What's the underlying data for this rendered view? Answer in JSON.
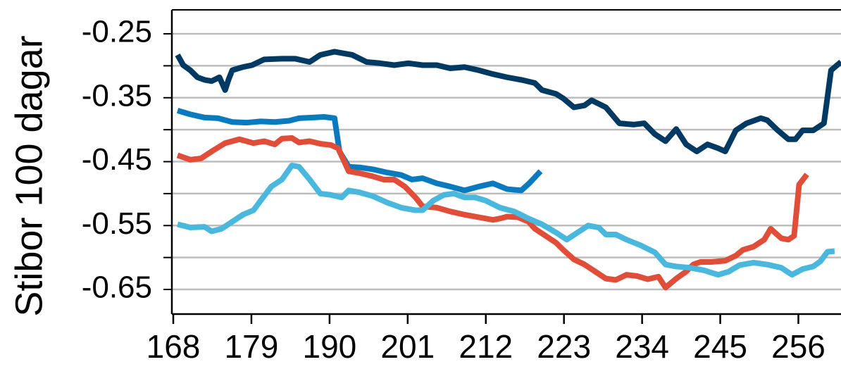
{
  "chart_data": {
    "type": "line",
    "y_label": "Stibor 100 dagar",
    "xlim": [
      168,
      262
    ],
    "xticks": [
      168,
      179,
      190,
      201,
      212,
      223,
      234,
      245,
      256
    ],
    "ylim": [
      -0.6885,
      -0.2125
    ],
    "yticks": [
      -0.25,
      -0.35,
      -0.45,
      -0.55,
      -0.65
    ],
    "minor_yticks": [
      -0.3,
      -0.4,
      -0.5,
      -0.6
    ],
    "grid": true,
    "series": [
      {
        "color": "#003a63",
        "x": [
          168.6,
          169.4,
          170.4,
          171.4,
          172.4,
          173.4,
          174.5,
          175.3,
          175.8,
          176.3,
          177.8,
          179.1,
          180.8,
          183.3,
          185.2,
          187.2,
          188.7,
          190.7,
          192.2,
          193.2,
          195.2,
          197.1,
          199.1,
          201.1,
          203.1,
          205.1,
          207.0,
          209.0,
          211.0,
          213.0,
          215.0,
          217.0,
          218.9,
          219.9,
          221.9,
          222.9,
          224.4,
          225.9,
          226.9,
          228.9,
          230.8,
          232.8,
          234.3,
          235.8,
          237.3,
          238.8,
          240.2,
          241.7,
          243.2,
          244.7,
          245.7,
          247.2,
          248.7,
          250.7,
          251.6,
          253.1,
          254.6,
          255.6,
          256.6,
          258.1,
          259.6,
          260.6,
          262.0
        ],
        "values": [
          -0.283,
          -0.299,
          -0.307,
          -0.318,
          -0.322,
          -0.324,
          -0.318,
          -0.338,
          -0.321,
          -0.307,
          -0.302,
          -0.299,
          -0.29,
          -0.289,
          -0.289,
          -0.294,
          -0.283,
          -0.278,
          -0.281,
          -0.283,
          -0.294,
          -0.296,
          -0.299,
          -0.296,
          -0.299,
          -0.299,
          -0.304,
          -0.302,
          -0.307,
          -0.313,
          -0.318,
          -0.322,
          -0.327,
          -0.338,
          -0.344,
          -0.351,
          -0.365,
          -0.362,
          -0.354,
          -0.365,
          -0.39,
          -0.392,
          -0.39,
          -0.407,
          -0.418,
          -0.399,
          -0.423,
          -0.434,
          -0.423,
          -0.429,
          -0.434,
          -0.401,
          -0.39,
          -0.382,
          -0.385,
          -0.401,
          -0.415,
          -0.415,
          -0.401,
          -0.401,
          -0.39,
          -0.307,
          -0.294
        ]
      },
      {
        "color": "#0a7abf",
        "x": [
          168.6,
          170.4,
          172.4,
          174.3,
          176.3,
          178.3,
          180.3,
          182.3,
          184.3,
          185.7,
          187.7,
          189.2,
          190.7,
          191.4,
          192.7,
          194.2,
          196.1,
          198.1,
          200.1,
          201.6,
          203.1,
          205.1,
          207.0,
          209.0,
          211.0,
          213.0,
          215.0,
          217.0,
          218.1,
          219.7
        ],
        "values": [
          -0.37,
          -0.376,
          -0.381,
          -0.382,
          -0.388,
          -0.389,
          -0.387,
          -0.388,
          -0.386,
          -0.382,
          -0.381,
          -0.38,
          -0.382,
          -0.434,
          -0.458,
          -0.459,
          -0.462,
          -0.467,
          -0.471,
          -0.478,
          -0.476,
          -0.484,
          -0.489,
          -0.495,
          -0.489,
          -0.484,
          -0.493,
          -0.495,
          -0.484,
          -0.465
        ]
      },
      {
        "color": "#e04e39",
        "x": [
          168.6,
          170.4,
          171.9,
          173.4,
          175.3,
          177.3,
          179.3,
          180.8,
          182.3,
          183.3,
          184.7,
          185.7,
          187.2,
          188.7,
          190.2,
          191.2,
          192.7,
          194.2,
          196.1,
          197.6,
          199.1,
          200.6,
          202.1,
          203.1,
          205.1,
          207.0,
          209.0,
          211.0,
          213.0,
          214.0,
          215.0,
          216.5,
          218.0,
          218.9,
          220.4,
          221.9,
          222.9,
          224.4,
          225.9,
          227.4,
          228.9,
          230.3,
          231.8,
          233.3,
          234.8,
          236.3,
          237.3,
          238.8,
          240.2,
          241.2,
          242.2,
          243.7,
          245.7,
          247.2,
          248.2,
          249.7,
          251.2,
          252.1,
          253.6,
          254.6,
          255.4,
          256.1,
          257.2
        ],
        "values": [
          -0.44,
          -0.447,
          -0.445,
          -0.434,
          -0.421,
          -0.415,
          -0.421,
          -0.418,
          -0.423,
          -0.414,
          -0.413,
          -0.42,
          -0.418,
          -0.422,
          -0.424,
          -0.429,
          -0.465,
          -0.468,
          -0.473,
          -0.478,
          -0.478,
          -0.489,
          -0.506,
          -0.52,
          -0.522,
          -0.528,
          -0.533,
          -0.537,
          -0.541,
          -0.539,
          -0.536,
          -0.537,
          -0.544,
          -0.555,
          -0.566,
          -0.577,
          -0.588,
          -0.603,
          -0.611,
          -0.622,
          -0.633,
          -0.635,
          -0.627,
          -0.629,
          -0.634,
          -0.63,
          -0.647,
          -0.633,
          -0.622,
          -0.611,
          -0.607,
          -0.607,
          -0.605,
          -0.597,
          -0.588,
          -0.583,
          -0.572,
          -0.555,
          -0.57,
          -0.572,
          -0.566,
          -0.486,
          -0.47
        ]
      },
      {
        "color": "#4ab8dc",
        "x": [
          168.6,
          170.4,
          172.4,
          173.4,
          174.8,
          176.3,
          177.8,
          179.3,
          180.3,
          181.8,
          183.3,
          184.7,
          185.7,
          187.2,
          188.7,
          190.2,
          191.7,
          192.7,
          194.2,
          196.1,
          198.1,
          200.1,
          202.1,
          203.1,
          204.6,
          206.1,
          207.5,
          209.0,
          210.5,
          212.0,
          214.0,
          216.0,
          218.0,
          219.9,
          221.9,
          223.4,
          224.9,
          226.4,
          227.9,
          228.9,
          230.3,
          231.8,
          233.8,
          235.8,
          237.3,
          238.8,
          240.7,
          242.7,
          244.7,
          246.2,
          247.7,
          249.7,
          251.6,
          253.6,
          255.1,
          256.6,
          258.1,
          259.1,
          260.1,
          261.1
        ],
        "values": [
          -0.548,
          -0.553,
          -0.552,
          -0.559,
          -0.555,
          -0.544,
          -0.533,
          -0.526,
          -0.511,
          -0.489,
          -0.478,
          -0.456,
          -0.458,
          -0.478,
          -0.5,
          -0.502,
          -0.506,
          -0.495,
          -0.498,
          -0.504,
          -0.514,
          -0.522,
          -0.526,
          -0.526,
          -0.511,
          -0.502,
          -0.5,
          -0.506,
          -0.506,
          -0.511,
          -0.522,
          -0.528,
          -0.539,
          -0.548,
          -0.561,
          -0.572,
          -0.561,
          -0.55,
          -0.553,
          -0.564,
          -0.564,
          -0.572,
          -0.581,
          -0.592,
          -0.611,
          -0.614,
          -0.616,
          -0.62,
          -0.627,
          -0.622,
          -0.612,
          -0.608,
          -0.611,
          -0.616,
          -0.627,
          -0.618,
          -0.614,
          -0.606,
          -0.591,
          -0.59
        ]
      }
    ]
  }
}
